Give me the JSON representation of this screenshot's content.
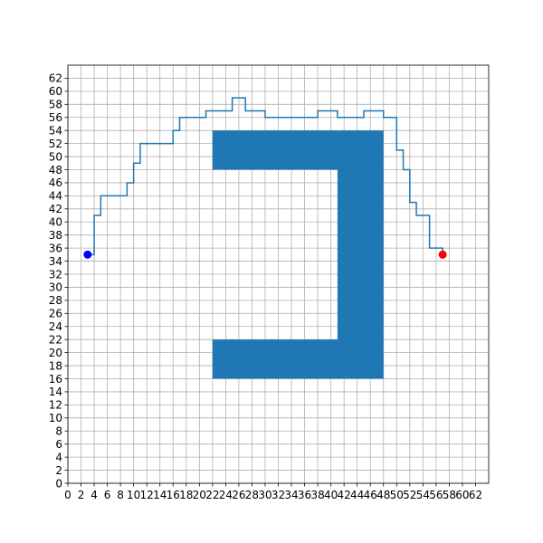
{
  "chart_data": {
    "type": "line",
    "title": "",
    "xlabel": "",
    "ylabel": "",
    "xlim": [
      0,
      64
    ],
    "ylim": [
      0,
      64
    ],
    "grid": true,
    "xticks": [
      0,
      2,
      4,
      6,
      8,
      10,
      12,
      14,
      16,
      18,
      20,
      22,
      24,
      26,
      28,
      30,
      32,
      34,
      36,
      38,
      40,
      42,
      44,
      46,
      48,
      50,
      52,
      54,
      56,
      58,
      60,
      62
    ],
    "yticks": [
      0,
      2,
      4,
      6,
      8,
      10,
      12,
      14,
      16,
      18,
      20,
      22,
      24,
      26,
      28,
      30,
      32,
      34,
      36,
      38,
      40,
      42,
      44,
      46,
      48,
      50,
      52,
      54,
      56,
      58,
      60,
      62
    ],
    "obstacle": {
      "color": "#1f77b4",
      "polygon": [
        [
          22,
          54
        ],
        [
          48,
          54
        ],
        [
          48,
          16
        ],
        [
          22,
          16
        ],
        [
          22,
          22
        ],
        [
          41,
          22
        ],
        [
          41,
          48
        ],
        [
          22,
          48
        ]
      ]
    },
    "path": {
      "color": "#1f77b4",
      "points": [
        [
          3,
          35
        ],
        [
          4,
          35
        ],
        [
          4,
          41
        ],
        [
          5,
          41
        ],
        [
          5,
          44
        ],
        [
          9,
          44
        ],
        [
          9,
          46
        ],
        [
          10,
          46
        ],
        [
          10,
          49
        ],
        [
          11,
          49
        ],
        [
          11,
          52
        ],
        [
          16,
          52
        ],
        [
          16,
          54
        ],
        [
          17,
          54
        ],
        [
          17,
          56
        ],
        [
          21,
          56
        ],
        [
          21,
          57
        ],
        [
          25,
          57
        ],
        [
          25,
          59
        ],
        [
          27,
          59
        ],
        [
          27,
          57
        ],
        [
          30,
          57
        ],
        [
          30,
          56
        ],
        [
          38,
          56
        ],
        [
          38,
          57
        ],
        [
          41,
          57
        ],
        [
          41,
          56
        ],
        [
          45,
          56
        ],
        [
          45,
          57
        ],
        [
          48,
          57
        ],
        [
          48,
          56
        ],
        [
          50,
          56
        ],
        [
          50,
          51
        ],
        [
          51,
          51
        ],
        [
          51,
          48
        ],
        [
          52,
          48
        ],
        [
          52,
          43
        ],
        [
          53,
          43
        ],
        [
          53,
          41
        ],
        [
          55,
          41
        ],
        [
          55,
          36
        ],
        [
          57,
          36
        ],
        [
          57,
          35
        ]
      ]
    },
    "start": {
      "x": 3,
      "y": 35,
      "color": "#0000ff"
    },
    "goal": {
      "x": 57,
      "y": 35,
      "color": "#ff0000"
    }
  }
}
